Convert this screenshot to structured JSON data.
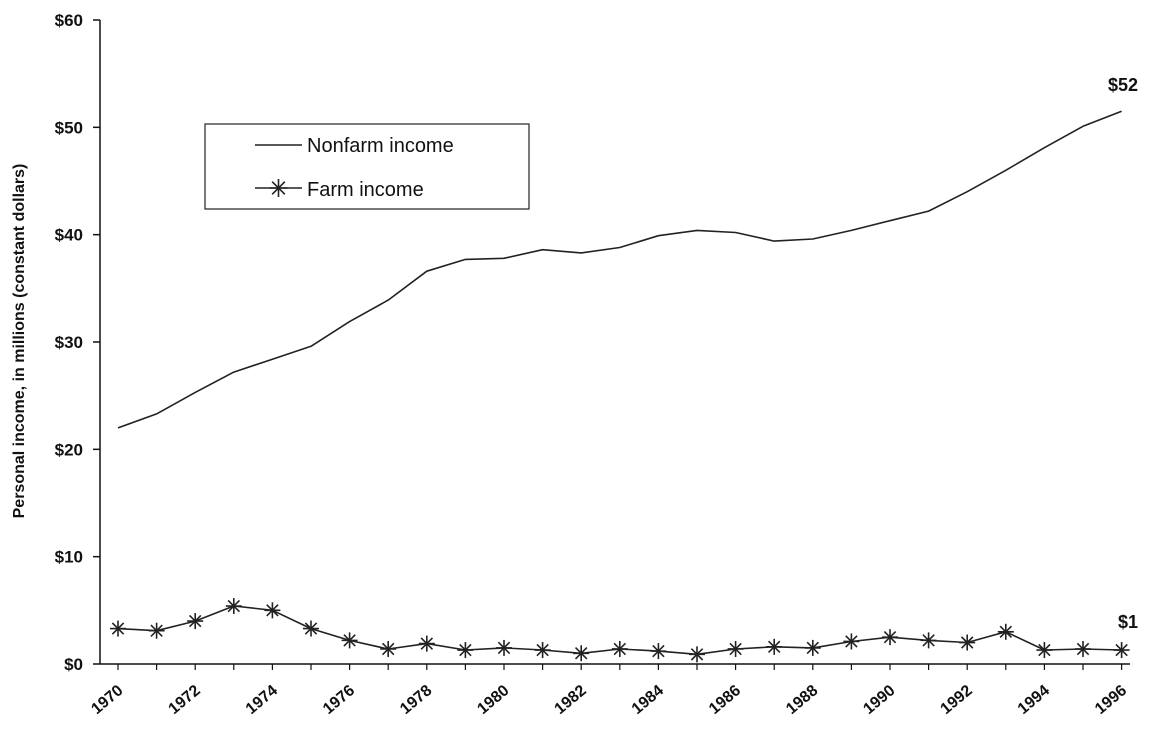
{
  "chart_data": {
    "type": "line",
    "ylabel": "Personal income, in millions (constant dollars)",
    "ylim": [
      0,
      60
    ],
    "yticks": [
      "$0",
      "$10",
      "$20",
      "$30",
      "$40",
      "$50",
      "$60"
    ],
    "xtick_labels": [
      "1970",
      "1972",
      "1974",
      "1976",
      "1978",
      "1980",
      "1982",
      "1984",
      "1986",
      "1988",
      "1990",
      "1992",
      "1994",
      "1996"
    ],
    "x": [
      1970,
      1971,
      1972,
      1973,
      1974,
      1975,
      1976,
      1977,
      1978,
      1979,
      1980,
      1981,
      1982,
      1983,
      1984,
      1985,
      1986,
      1987,
      1988,
      1989,
      1990,
      1991,
      1992,
      1993,
      1994,
      1995,
      1996
    ],
    "series": [
      {
        "name": "Nonfarm income",
        "marker": "none",
        "values": [
          22.0,
          23.3,
          25.3,
          27.2,
          28.4,
          29.6,
          31.9,
          33.9,
          36.6,
          37.7,
          37.8,
          38.6,
          38.3,
          38.8,
          39.9,
          40.4,
          40.2,
          39.4,
          39.6,
          40.4,
          41.3,
          42.2,
          44.0,
          46.0,
          48.1,
          50.1,
          51.5
        ],
        "end_label": "$52"
      },
      {
        "name": "Farm income",
        "marker": "asterisk",
        "values": [
          3.3,
          3.1,
          4.0,
          5.4,
          5.0,
          3.3,
          2.2,
          1.4,
          1.9,
          1.3,
          1.5,
          1.3,
          1.0,
          1.4,
          1.2,
          0.9,
          1.4,
          1.6,
          1.5,
          2.1,
          2.5,
          2.2,
          2.0,
          3.0,
          1.3,
          1.4,
          1.3
        ],
        "end_label": "$1"
      }
    ],
    "legend_position": "top-left",
    "grid": false,
    "colors": {
      "line": "#222222",
      "axis": "#111111",
      "background": "#ffffff"
    }
  }
}
